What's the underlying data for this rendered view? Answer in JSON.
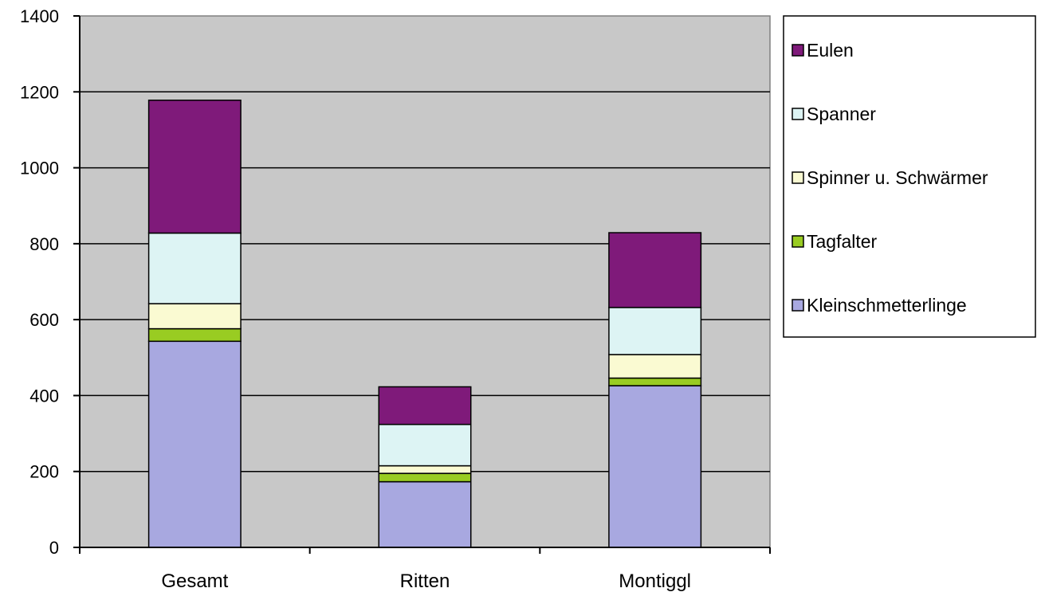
{
  "chart_data": {
    "type": "bar",
    "stacked": true,
    "categories": [
      "Gesamt",
      "Ritten",
      "Montiggl"
    ],
    "series": [
      {
        "name": "Kleinschmetterlinge",
        "color": "#a8a8e0",
        "values": [
          543,
          173,
          426
        ]
      },
      {
        "name": "Tagfalter",
        "color": "#99cc22",
        "values": [
          33,
          22,
          20
        ]
      },
      {
        "name": "Spinner u. Schwärmer",
        "color": "#fafad2",
        "values": [
          66,
          20,
          62
        ]
      },
      {
        "name": "Spanner",
        "color": "#ddf4f4",
        "values": [
          186,
          109,
          124
        ]
      },
      {
        "name": "Eulen",
        "color": "#7f1a7a",
        "values": [
          350,
          99,
          197
        ]
      }
    ],
    "ylim": [
      0,
      1400
    ],
    "yticks": [
      0,
      200,
      400,
      600,
      800,
      1000,
      1200,
      1400
    ],
    "grid": true,
    "plot_background": "#c8c8c8",
    "legend_position": "right",
    "legend_order": [
      "Eulen",
      "Spanner",
      "Spinner u. Schwärmer",
      "Tagfalter",
      "Kleinschmetterlinge"
    ]
  }
}
